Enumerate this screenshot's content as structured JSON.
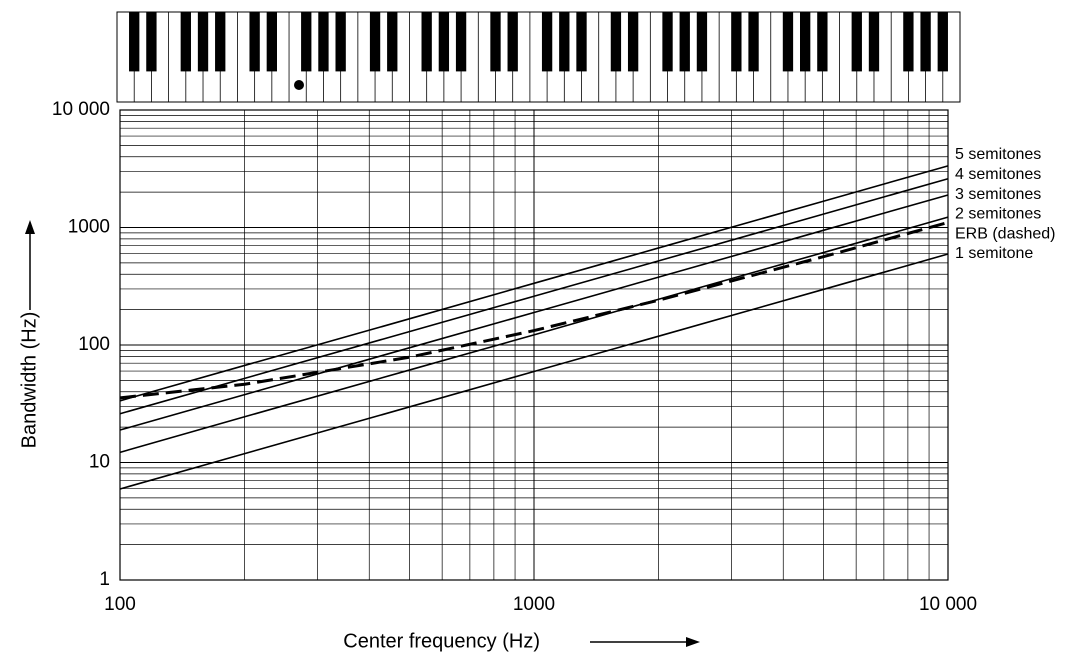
{
  "chart_data": {
    "type": "line",
    "x_label": "Center frequency (Hz)",
    "y_label": "Bandwidth (Hz)",
    "log_x": true,
    "log_y": true,
    "grid": true,
    "xlim": [
      100,
      10000
    ],
    "ylim": [
      1,
      10000
    ],
    "xticks": [
      100,
      1000,
      {
        "value": 10000,
        "label": "10 000"
      }
    ],
    "yticks": [
      1,
      10,
      100,
      1000,
      {
        "value": 10000,
        "label": "10 000"
      }
    ],
    "x_minor_ticks": [
      200,
      300,
      400,
      500,
      600,
      700,
      800,
      900,
      2000,
      3000,
      4000,
      5000,
      6000,
      7000,
      8000,
      9000
    ],
    "y_minor_ticks": [
      2,
      3,
      4,
      5,
      6,
      7,
      8,
      9,
      20,
      30,
      40,
      50,
      60,
      70,
      80,
      90,
      200,
      300,
      400,
      500,
      600,
      700,
      800,
      900,
      2000,
      3000,
      4000,
      5000,
      6000,
      7000,
      8000,
      9000
    ],
    "x": [
      100,
      200,
      500,
      1000,
      2000,
      5000,
      10000
    ],
    "series": [
      {
        "name": "5 semitones",
        "color": "#000000",
        "dashed": false,
        "values": [
          33.5,
          67.0,
          167,
          335,
          670,
          1674,
          3348
        ]
      },
      {
        "name": "4 semitones",
        "color": "#000000",
        "dashed": false,
        "values": [
          26.0,
          52.0,
          130,
          260,
          520,
          1300,
          2599
        ]
      },
      {
        "name": "3 semitones",
        "color": "#000000",
        "dashed": false,
        "values": [
          18.9,
          37.8,
          94.6,
          189,
          378,
          946,
          1892
        ]
      },
      {
        "name": "2 semitones",
        "color": "#000000",
        "dashed": false,
        "values": [
          12.2,
          24.5,
          61.2,
          122,
          245,
          612,
          1225
        ]
      },
      {
        "name": "ERB (dashed)",
        "color": "#000000",
        "dashed": true,
        "values": [
          35.5,
          46.3,
          78.7,
          132.6,
          240.6,
          564.4,
          1104
        ]
      },
      {
        "name": "1 semitone",
        "color": "#000000",
        "dashed": false,
        "values": [
          5.95,
          11.9,
          29.7,
          59.5,
          118.9,
          297,
          595
        ]
      }
    ]
  }
}
